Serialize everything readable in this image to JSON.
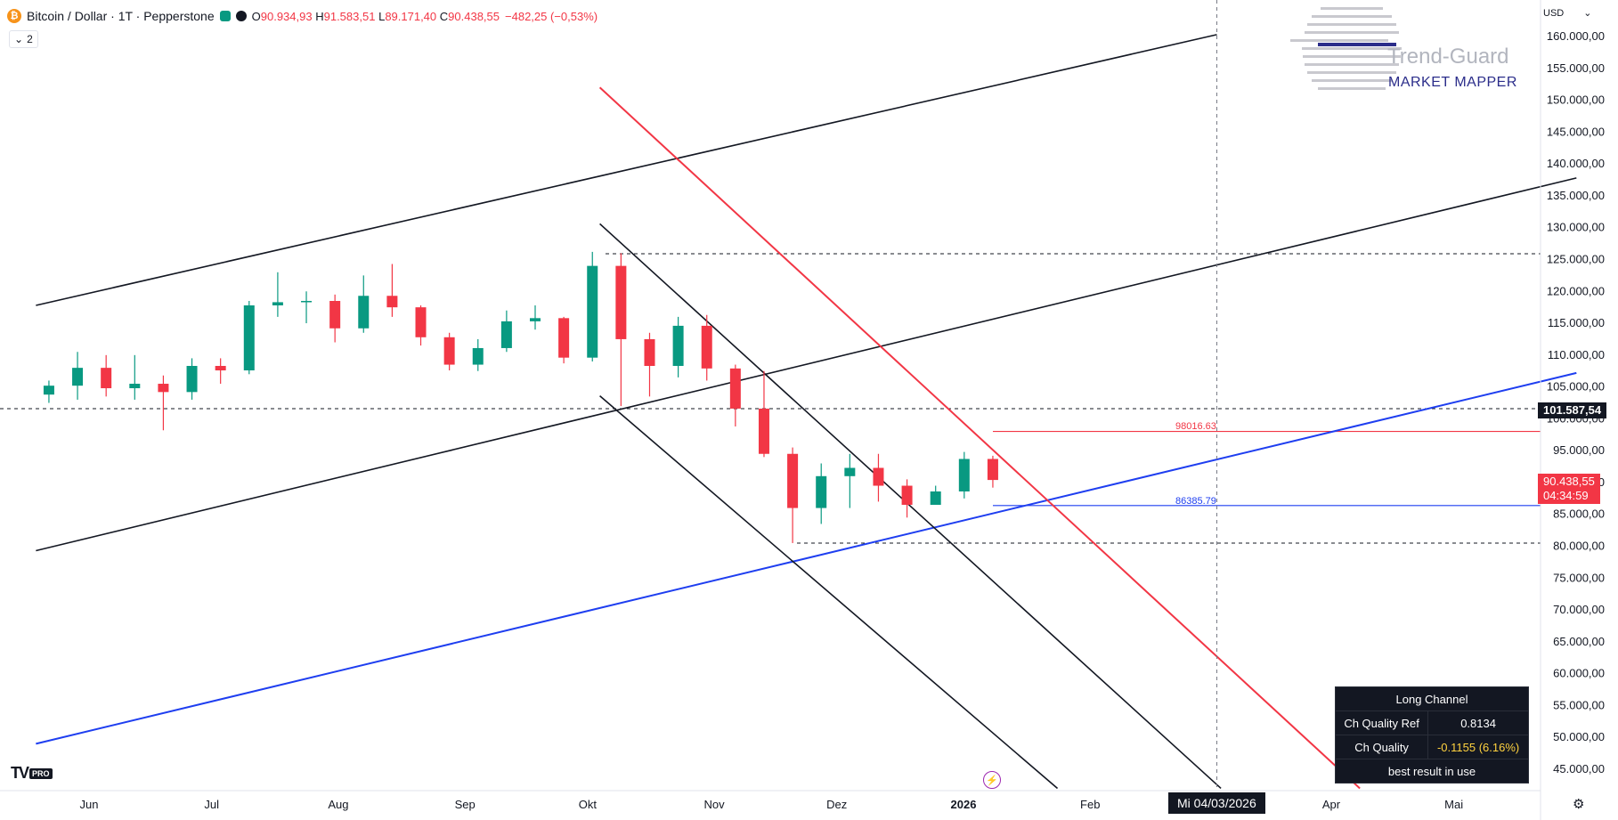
{
  "header": {
    "symbol_icon": "bitcoin-icon",
    "symbol": "Bitcoin / Dollar · 1T · Pepperstone",
    "open_label": "O",
    "open": "90.934,93",
    "high_label": "H",
    "high": "91.583,51",
    "low_label": "L",
    "low": "89.171,40",
    "close_label": "C",
    "close": "90.438,55",
    "change": "−482,25 (−0,53%)",
    "indicator_count": "2"
  },
  "currency_label": "USD",
  "price_tags": {
    "crosshair_price": "101.587,54",
    "last_price": "90.438,55",
    "countdown": "04:34:59"
  },
  "line_labels": {
    "red_level": "98016.63",
    "blue_level": "86385.79"
  },
  "x_cursor_label": "Mi 04/03/2026",
  "logo": {
    "title": "Trend-Guard",
    "subtitle": "MARKET MAPPER"
  },
  "brand": {
    "tv": "TV",
    "pro": "PRO"
  },
  "info_table": {
    "title": "Long Channel",
    "rows": [
      {
        "label": "Ch Quality Ref",
        "value": "0.8134"
      },
      {
        "label": "Ch Quality",
        "value": "-0.1155 (6.16%)"
      }
    ],
    "footer": "best result in use"
  },
  "colors": {
    "up": "#089981",
    "down": "#f23645",
    "red_line": "#f23645",
    "blue_line": "#1e3ef0",
    "black_line": "#131722"
  },
  "chart_data": {
    "type": "candlestick",
    "y_axis_ticks": [
      "160.000,00",
      "155.000,00",
      "150.000,00",
      "145.000,00",
      "140.000,00",
      "135.000,00",
      "130.000,00",
      "125.000,00",
      "120.000,00",
      "115.000,00",
      "110.000,00",
      "105.000,00",
      "100.000,00",
      "95.000,00",
      "90.000,00",
      "85.000,00",
      "80.000,00",
      "75.000,00",
      "70.000,00",
      "65.000,00",
      "60.000,00",
      "55.000,00",
      "50.000,00",
      "45.000,00"
    ],
    "y_ticks_values": [
      160000,
      155000,
      150000,
      145000,
      140000,
      135000,
      130000,
      125000,
      120000,
      115000,
      110000,
      105000,
      100000,
      95000,
      90000,
      85000,
      80000,
      75000,
      70000,
      65000,
      60000,
      55000,
      50000,
      45000
    ],
    "x_axis_labels": [
      "Jun",
      "Jul",
      "Aug",
      "Sep",
      "Okt",
      "Nov",
      "Dez",
      "2026",
      "Feb",
      "Apr",
      "Mai"
    ],
    "ylim": [
      42000,
      162000
    ],
    "horizontal_levels": [
      {
        "value": 125900,
        "style": "dashed",
        "color": "#131722"
      },
      {
        "value": 101587.54,
        "style": "dashed",
        "color": "#131722"
      },
      {
        "value": 80500,
        "style": "dashed",
        "color": "#131722"
      },
      {
        "value": 98016.63,
        "style": "solid",
        "color": "#f23645"
      },
      {
        "value": 86385.79,
        "style": "solid",
        "color": "#1e3ef0"
      }
    ],
    "trend_lines": [
      {
        "name": "upper-channel",
        "color": "#131722",
        "from": {
          "date": "2025-05-19",
          "price": 117800
        },
        "to": {
          "date": "2026-03-04",
          "price": 160300
        }
      },
      {
        "name": "mid-channel",
        "color": "#131722",
        "from": {
          "date": "2025-05-19",
          "price": 79300
        },
        "to": {
          "date": "2026-05-31",
          "price": 137800
        }
      },
      {
        "name": "lower-channel",
        "color": "#1e3ef0",
        "from": {
          "date": "2025-05-19",
          "price": 49000
        },
        "to": {
          "date": "2026-05-31",
          "price": 107200
        }
      },
      {
        "name": "red-descending",
        "color": "#f23645",
        "from": {
          "date": "2025-10-04",
          "price": 152000
        },
        "to": {
          "date": "2026-04-08",
          "price": 42000
        }
      },
      {
        "name": "down-channel-upper",
        "color": "#131722",
        "from": {
          "date": "2025-10-04",
          "price": 130600
        },
        "to": {
          "date": "2026-03-05",
          "price": 42000
        }
      },
      {
        "name": "down-channel-lower",
        "color": "#131722",
        "from": {
          "date": "2025-10-04",
          "price": 103600
        },
        "to": {
          "date": "2026-01-24",
          "price": 42000
        }
      }
    ],
    "candles": [
      [
        "2025-05-20",
        103800,
        106000,
        102500,
        105200
      ],
      [
        "2025-05-27",
        105200,
        110500,
        103000,
        108000
      ],
      [
        "2025-06-03",
        108000,
        110000,
        103500,
        104800
      ],
      [
        "2025-06-10",
        104800,
        110000,
        103000,
        105500
      ],
      [
        "2025-06-17",
        105500,
        106800,
        98200,
        104200
      ],
      [
        "2025-06-24",
        104200,
        109500,
        103000,
        108300
      ],
      [
        "2025-07-01",
        108300,
        109500,
        105500,
        107600
      ],
      [
        "2025-07-08",
        107600,
        118500,
        107000,
        117800
      ],
      [
        "2025-07-15",
        117800,
        123000,
        116000,
        118300
      ],
      [
        "2025-07-22",
        118300,
        120000,
        115000,
        118500
      ],
      [
        "2025-07-29",
        118500,
        119500,
        112000,
        114200
      ],
      [
        "2025-08-05",
        114200,
        122500,
        113500,
        119300
      ],
      [
        "2025-08-12",
        119300,
        124300,
        116000,
        117500
      ],
      [
        "2025-08-19",
        117500,
        117800,
        111500,
        112800
      ],
      [
        "2025-08-26",
        112800,
        113500,
        107600,
        108500
      ],
      [
        "2025-09-02",
        108500,
        112500,
        107500,
        111100
      ],
      [
        "2025-09-09",
        111100,
        117000,
        110500,
        115300
      ],
      [
        "2025-09-16",
        115300,
        117800,
        114000,
        115800
      ],
      [
        "2025-09-23",
        115800,
        116000,
        108700,
        109600
      ],
      [
        "2025-09-30",
        109600,
        126200,
        109000,
        124000
      ],
      [
        "2025-10-07",
        124000,
        126000,
        102000,
        112500
      ],
      [
        "2025-10-14",
        112500,
        113500,
        103500,
        108300
      ],
      [
        "2025-10-21",
        108300,
        116000,
        106500,
        114600
      ],
      [
        "2025-10-28",
        114600,
        116300,
        106000,
        107900
      ],
      [
        "2025-11-04",
        107900,
        108500,
        98800,
        101600
      ],
      [
        "2025-11-11",
        101600,
        107500,
        94000,
        94500
      ],
      [
        "2025-11-18",
        94500,
        95500,
        80500,
        86000
      ],
      [
        "2025-11-25",
        86000,
        93000,
        83500,
        91000
      ],
      [
        "2025-12-02",
        91000,
        94500,
        86000,
        92300
      ],
      [
        "2025-12-09",
        92300,
        94500,
        87000,
        89500
      ],
      [
        "2025-12-16",
        89500,
        90500,
        84500,
        86500
      ],
      [
        "2025-12-23",
        86500,
        89500,
        86500,
        88600
      ],
      [
        "2025-12-30",
        88600,
        94800,
        87500,
        93700
      ],
      [
        "2026-01-06",
        93700,
        94200,
        89200,
        90400
      ]
    ]
  }
}
